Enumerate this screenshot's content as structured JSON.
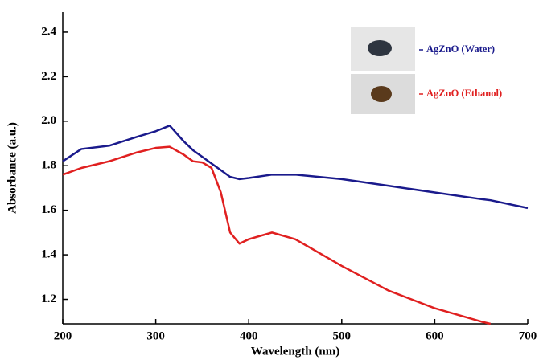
{
  "chart_data": {
    "type": "line",
    "x_label": "Wavelength (nm)",
    "y_label": "Absorbance (a.u.)",
    "x": [
      200,
      220,
      250,
      280,
      300,
      315,
      330,
      340,
      350,
      360,
      370,
      380,
      390,
      400,
      425,
      450,
      500,
      550,
      600,
      650,
      660,
      700
    ],
    "series": [
      {
        "name": "AgZnO (Water)",
        "color": "#1a1a8c",
        "values": [
          1.82,
          1.875,
          1.89,
          1.93,
          1.955,
          1.98,
          1.91,
          1.87,
          1.84,
          1.81,
          1.78,
          1.75,
          1.74,
          1.745,
          1.76,
          1.76,
          1.74,
          1.71,
          1.68,
          1.65,
          1.645,
          1.61
        ]
      },
      {
        "name": "AgZnO (Ethanol)",
        "color": "#e02020",
        "values": [
          1.76,
          1.79,
          1.82,
          1.86,
          1.88,
          1.885,
          1.85,
          1.82,
          1.815,
          1.79,
          1.68,
          1.5,
          1.45,
          1.47,
          1.5,
          1.47,
          1.35,
          1.24,
          1.16,
          1.1,
          1.09,
          null
        ]
      }
    ],
    "xlim": [
      200,
      700
    ],
    "ylim": [
      1.09,
      2.49
    ],
    "xticks": [
      200,
      300,
      400,
      500,
      600,
      700
    ],
    "yticks": [
      1.2,
      1.4,
      1.6,
      1.8,
      {
        "value": 2.0,
        "label": "2.0"
      },
      2.2,
      2.4
    ]
  }
}
